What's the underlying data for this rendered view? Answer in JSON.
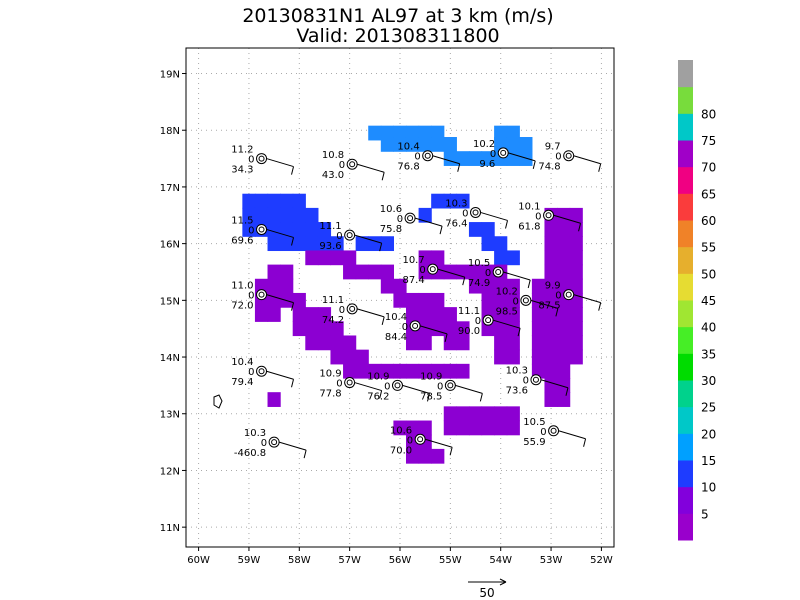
{
  "chart_data": {
    "type": "heatmap",
    "title_line1": "20130831N1 AL97 at 3 km (m/s)",
    "title_line2": "Valid: 201308311800",
    "x_tick_labels": [
      "60W",
      "59W",
      "58W",
      "57W",
      "56W",
      "55W",
      "54W",
      "53W",
      "52W"
    ],
    "x_tick_values": [
      -60,
      -59,
      -58,
      -57,
      -56,
      -55,
      -54,
      -53,
      -52
    ],
    "y_tick_labels": [
      "11N",
      "12N",
      "13N",
      "14N",
      "15N",
      "16N",
      "17N",
      "18N",
      "19N"
    ],
    "y_tick_values": [
      11,
      12,
      13,
      14,
      15,
      16,
      17,
      18,
      19
    ],
    "xlim": [
      -60.25,
      -51.75
    ],
    "ylim": [
      10.65,
      19.45
    ],
    "grid": true,
    "colorbar": {
      "levels": [
        "5",
        "10",
        "15",
        "20",
        "25",
        "30",
        "35",
        "40",
        "45",
        "50",
        "55",
        "60",
        "65",
        "70",
        "75",
        "80"
      ],
      "colors": [
        "#9900cc",
        "#8200dc",
        "#1e3cff",
        "#00a0ff",
        "#00c8c8",
        "#00d28c",
        "#00dc00",
        "#46ee26",
        "#a0e632",
        "#e6dc32",
        "#e6af2d",
        "#f08228",
        "#fa3c3c",
        "#f00082",
        "#a000c8",
        "#00c8c8",
        "#78dc3c",
        "#a0a0a0"
      ]
    },
    "vector_reference": {
      "label": "50"
    },
    "wind_regions": [
      {
        "name": "north arc",
        "speed_class": "15-20",
        "cells": [
          [
            -56.5,
            17.95
          ],
          [
            -56.25,
            17.95
          ],
          [
            -56.0,
            17.95
          ],
          [
            -55.75,
            17.95
          ],
          [
            -55.5,
            17.95
          ],
          [
            -55.25,
            17.95
          ],
          [
            -54.0,
            17.95
          ],
          [
            -53.75,
            17.95
          ],
          [
            -56.25,
            17.75
          ],
          [
            -56.0,
            17.75
          ],
          [
            -55.75,
            17.75
          ],
          [
            -55.5,
            17.75
          ],
          [
            -55.25,
            17.75
          ],
          [
            -55.0,
            17.75
          ],
          [
            -54.0,
            17.75
          ],
          [
            -53.75,
            17.75
          ],
          [
            -53.5,
            17.75
          ],
          [
            -55.0,
            17.5
          ],
          [
            -54.75,
            17.5
          ],
          [
            -54.5,
            17.5
          ],
          [
            -54.25,
            17.5
          ],
          [
            -54.0,
            17.5
          ],
          [
            -53.75,
            17.5
          ],
          [
            -53.5,
            17.5
          ]
        ]
      },
      {
        "name": "west block",
        "speed_class": "10-15",
        "cells": [
          [
            -59.0,
            16.75
          ],
          [
            -58.75,
            16.75
          ],
          [
            -58.5,
            16.75
          ],
          [
            -58.25,
            16.75
          ],
          [
            -58.0,
            16.75
          ],
          [
            -59.0,
            16.5
          ],
          [
            -58.75,
            16.5
          ],
          [
            -58.5,
            16.5
          ],
          [
            -58.25,
            16.5
          ],
          [
            -58.0,
            16.5
          ],
          [
            -57.75,
            16.5
          ],
          [
            -59.0,
            16.25
          ],
          [
            -58.75,
            16.25
          ],
          [
            -58.5,
            16.25
          ],
          [
            -58.25,
            16.25
          ],
          [
            -58.0,
            16.25
          ],
          [
            -57.75,
            16.25
          ],
          [
            -57.5,
            16.25
          ],
          [
            -58.5,
            16.0
          ],
          [
            -58.25,
            16.0
          ],
          [
            -58.0,
            16.0
          ],
          [
            -57.75,
            16.0
          ],
          [
            -57.5,
            16.0
          ],
          [
            -57.25,
            16.0
          ],
          [
            -56.75,
            16.0
          ],
          [
            -56.5,
            16.0
          ],
          [
            -56.25,
            16.0
          ],
          [
            -55.25,
            16.75
          ],
          [
            -55.0,
            16.75
          ],
          [
            -54.75,
            16.75
          ],
          [
            -55.5,
            16.5
          ],
          [
            -54.5,
            16.25
          ],
          [
            -54.25,
            16.25
          ],
          [
            -54.25,
            16.0
          ],
          [
            -54.0,
            16.0
          ],
          [
            -54.0,
            15.75
          ],
          [
            -53.75,
            15.75
          ]
        ]
      },
      {
        "name": "main band",
        "speed_class": "5-10",
        "cells": [
          [
            -58.5,
            15.5
          ],
          [
            -58.25,
            15.5
          ],
          [
            -58.75,
            15.25
          ],
          [
            -58.5,
            15.25
          ],
          [
            -58.25,
            15.25
          ],
          [
            -58.75,
            15.0
          ],
          [
            -58.5,
            15.0
          ],
          [
            -58.25,
            15.0
          ],
          [
            -58.0,
            15.0
          ],
          [
            -58.75,
            14.75
          ],
          [
            -58.5,
            14.75
          ],
          [
            -58.0,
            14.75
          ],
          [
            -57.75,
            14.75
          ],
          [
            -57.5,
            14.75
          ],
          [
            -58.0,
            14.5
          ],
          [
            -57.75,
            14.5
          ],
          [
            -57.5,
            14.5
          ],
          [
            -57.25,
            14.5
          ],
          [
            -57.75,
            14.25
          ],
          [
            -57.5,
            14.25
          ],
          [
            -57.25,
            14.25
          ],
          [
            -57.0,
            14.25
          ],
          [
            -57.25,
            14.0
          ],
          [
            -57.0,
            14.0
          ],
          [
            -56.75,
            14.0
          ],
          [
            -57.0,
            13.75
          ],
          [
            -56.75,
            13.75
          ],
          [
            -56.5,
            13.75
          ],
          [
            -56.25,
            13.75
          ],
          [
            -56.0,
            13.75
          ],
          [
            -55.75,
            13.75
          ],
          [
            -55.5,
            13.75
          ],
          [
            -55.25,
            13.75
          ],
          [
            -55.0,
            13.75
          ],
          [
            -54.75,
            13.75
          ],
          [
            -57.75,
            15.75
          ],
          [
            -57.5,
            15.75
          ],
          [
            -57.25,
            15.75
          ],
          [
            -57.0,
            15.75
          ],
          [
            -57.0,
            15.5
          ],
          [
            -56.75,
            15.5
          ],
          [
            -56.5,
            15.5
          ],
          [
            -56.25,
            15.5
          ],
          [
            -56.25,
            15.25
          ],
          [
            -56.0,
            15.25
          ],
          [
            -56.0,
            15.0
          ],
          [
            -55.75,
            15.0
          ],
          [
            -55.5,
            15.0
          ],
          [
            -55.25,
            15.0
          ],
          [
            -55.75,
            14.75
          ],
          [
            -55.5,
            14.75
          ],
          [
            -55.25,
            14.75
          ],
          [
            -55.0,
            14.75
          ],
          [
            -55.75,
            14.5
          ],
          [
            -55.5,
            14.5
          ],
          [
            -55.25,
            14.5
          ],
          [
            -55.0,
            14.5
          ],
          [
            -54.75,
            14.5
          ],
          [
            -55.75,
            14.25
          ],
          [
            -55.5,
            14.25
          ],
          [
            -55.0,
            14.25
          ],
          [
            -54.75,
            14.25
          ],
          [
            -55.5,
            15.5
          ],
          [
            -55.25,
            15.5
          ],
          [
            -55.0,
            15.5
          ],
          [
            -54.75,
            15.5
          ],
          [
            -55.5,
            15.75
          ],
          [
            -55.25,
            15.75
          ],
          [
            -54.5,
            15.5
          ],
          [
            -54.25,
            15.5
          ],
          [
            -54.0,
            15.5
          ],
          [
            -54.5,
            15.25
          ],
          [
            -54.25,
            15.25
          ],
          [
            -54.0,
            15.25
          ],
          [
            -53.75,
            15.25
          ],
          [
            -54.25,
            15.0
          ],
          [
            -54.0,
            15.0
          ],
          [
            -53.75,
            15.0
          ],
          [
            -54.25,
            14.75
          ],
          [
            -54.0,
            14.75
          ],
          [
            -53.75,
            14.75
          ],
          [
            -54.25,
            14.5
          ],
          [
            -54.0,
            14.5
          ],
          [
            -53.75,
            14.5
          ],
          [
            -54.0,
            14.25
          ],
          [
            -53.75,
            14.25
          ],
          [
            -54.0,
            14.0
          ],
          [
            -53.75,
            14.0
          ],
          [
            -53.0,
            16.5
          ],
          [
            -52.75,
            16.5
          ],
          [
            -52.5,
            16.5
          ],
          [
            -53.0,
            16.25
          ],
          [
            -52.75,
            16.25
          ],
          [
            -52.5,
            16.25
          ],
          [
            -53.0,
            16.0
          ],
          [
            -52.75,
            16.0
          ],
          [
            -52.5,
            16.0
          ],
          [
            -53.0,
            15.75
          ],
          [
            -52.75,
            15.75
          ],
          [
            -52.5,
            15.75
          ],
          [
            -53.0,
            15.5
          ],
          [
            -52.75,
            15.5
          ],
          [
            -52.5,
            15.5
          ],
          [
            -53.25,
            15.25
          ],
          [
            -53.0,
            15.25
          ],
          [
            -52.75,
            15.25
          ],
          [
            -52.5,
            15.25
          ],
          [
            -53.25,
            15.0
          ],
          [
            -53.0,
            15.0
          ],
          [
            -52.75,
            15.0
          ],
          [
            -52.5,
            15.0
          ],
          [
            -53.25,
            14.75
          ],
          [
            -53.0,
            14.75
          ],
          [
            -52.75,
            14.75
          ],
          [
            -52.5,
            14.75
          ],
          [
            -53.25,
            14.5
          ],
          [
            -53.0,
            14.5
          ],
          [
            -52.75,
            14.5
          ],
          [
            -52.5,
            14.5
          ],
          [
            -53.25,
            14.25
          ],
          [
            -53.0,
            14.25
          ],
          [
            -52.75,
            14.25
          ],
          [
            -52.5,
            14.25
          ],
          [
            -53.25,
            14.0
          ],
          [
            -53.0,
            14.0
          ],
          [
            -52.75,
            14.0
          ],
          [
            -52.5,
            14.0
          ],
          [
            -53.25,
            13.75
          ],
          [
            -53.0,
            13.75
          ],
          [
            -52.75,
            13.75
          ],
          [
            -53.0,
            13.5
          ],
          [
            -52.75,
            13.5
          ],
          [
            -53.0,
            13.25
          ],
          [
            -52.75,
            13.25
          ],
          [
            -55.0,
            13.0
          ],
          [
            -54.75,
            13.0
          ],
          [
            -54.5,
            13.0
          ],
          [
            -54.25,
            13.0
          ],
          [
            -54.0,
            13.0
          ],
          [
            -53.75,
            13.0
          ],
          [
            -55.0,
            12.75
          ],
          [
            -54.75,
            12.75
          ],
          [
            -54.5,
            12.75
          ],
          [
            -54.25,
            12.75
          ],
          [
            -54.0,
            12.75
          ],
          [
            -53.75,
            12.75
          ],
          [
            -58.5,
            13.25
          ],
          [
            -56.0,
            12.75
          ],
          [
            -55.75,
            12.75
          ],
          [
            -55.5,
            12.75
          ],
          [
            -55.75,
            12.5
          ],
          [
            -55.5,
            12.5
          ],
          [
            -55.75,
            12.25
          ],
          [
            -55.5,
            12.25
          ],
          [
            -55.25,
            12.25
          ]
        ]
      }
    ],
    "stations": [
      {
        "lon": -58.75,
        "lat": 17.5,
        "v1": "11.2",
        "v2": "0",
        "v3": "34.3"
      },
      {
        "lon": -56.95,
        "lat": 17.4,
        "v1": "10.8",
        "v2": "0",
        "v3": "43.0"
      },
      {
        "lon": -55.45,
        "lat": 17.55,
        "v1": "10.4",
        "v2": "0",
        "v3": "76.8"
      },
      {
        "lon": -53.95,
        "lat": 17.6,
        "v1": "10.2",
        "v2": "0",
        "v3": "9.6"
      },
      {
        "lon": -52.65,
        "lat": 17.55,
        "v1": "9.7",
        "v2": "0",
        "v3": "74.8"
      },
      {
        "lon": -58.75,
        "lat": 16.25,
        "v1": "11.5",
        "v2": "0",
        "v3": "69.6"
      },
      {
        "lon": -57.0,
        "lat": 16.15,
        "v1": "11.1",
        "v2": "0",
        "v3": "93.6"
      },
      {
        "lon": -55.8,
        "lat": 16.45,
        "v1": "10.6",
        "v2": "0",
        "v3": "75.8"
      },
      {
        "lon": -54.5,
        "lat": 16.55,
        "v1": "10.3",
        "v2": "0",
        "v3": "76.4"
      },
      {
        "lon": -53.05,
        "lat": 16.5,
        "v1": "10.1",
        "v2": "0",
        "v3": "61.8"
      },
      {
        "lon": -55.35,
        "lat": 15.55,
        "v1": "10.7",
        "v2": "0",
        "v3": "87.4"
      },
      {
        "lon": -54.05,
        "lat": 15.5,
        "v1": "10.5",
        "v2": "0",
        "v3": "74.9"
      },
      {
        "lon": -58.75,
        "lat": 15.1,
        "v1": "11.0",
        "v2": "0",
        "v3": "72.0"
      },
      {
        "lon": -53.5,
        "lat": 15.0,
        "v1": "10.2",
        "v2": "0",
        "v3": "98.5"
      },
      {
        "lon": -52.65,
        "lat": 15.1,
        "v1": "9.9",
        "v2": "0",
        "v3": "87.5"
      },
      {
        "lon": -56.95,
        "lat": 14.85,
        "v1": "11.1",
        "v2": "0",
        "v3": "74.2"
      },
      {
        "lon": -55.7,
        "lat": 14.55,
        "v1": "10.4",
        "v2": "0",
        "v3": "84.4"
      },
      {
        "lon": -54.25,
        "lat": 14.65,
        "v1": "11.1",
        "v2": "0",
        "v3": "90.0"
      },
      {
        "lon": -58.75,
        "lat": 13.75,
        "v1": "10.4",
        "v2": "0",
        "v3": "79.4"
      },
      {
        "lon": -57.0,
        "lat": 13.55,
        "v1": "10.9",
        "v2": "0",
        "v3": "77.8"
      },
      {
        "lon": -56.05,
        "lat": 13.5,
        "v1": "10.9",
        "v2": "0",
        "v3": "76.2"
      },
      {
        "lon": -55.0,
        "lat": 13.5,
        "v1": "10.9",
        "v2": "0",
        "v3": "78.5"
      },
      {
        "lon": -53.3,
        "lat": 13.6,
        "v1": "10.3",
        "v2": "0",
        "v3": "73.6"
      },
      {
        "lon": -58.5,
        "lat": 12.5,
        "v1": "10.3",
        "v2": "0",
        "v3": "-460.8"
      },
      {
        "lon": -55.6,
        "lat": 12.55,
        "v1": "10.6",
        "v2": "0",
        "v3": "70.0"
      },
      {
        "lon": -52.95,
        "lat": 12.7,
        "v1": "10.5",
        "v2": "0",
        "v3": "55.9"
      }
    ]
  }
}
